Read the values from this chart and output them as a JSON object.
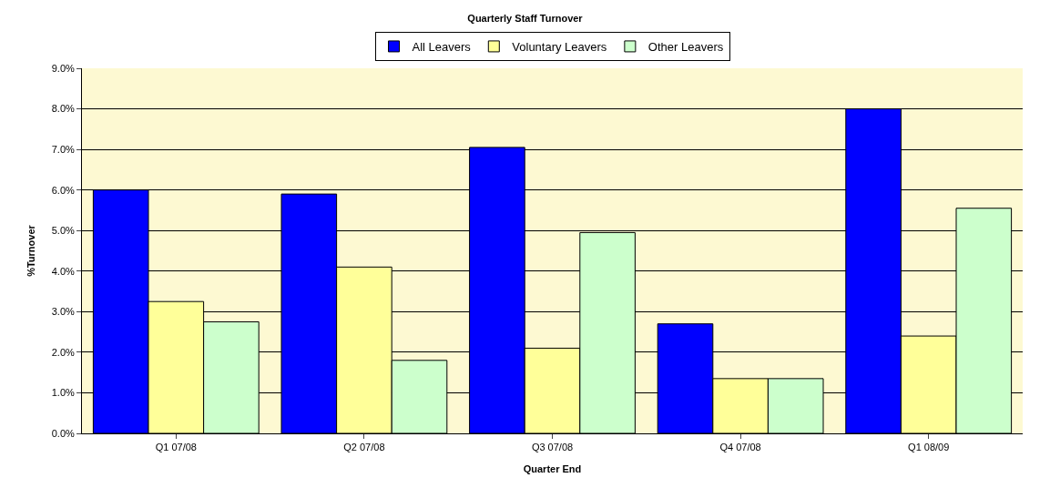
{
  "chart_data": {
    "type": "bar",
    "title": "Quarterly Staff Turnover",
    "xlabel": "Quarter End",
    "ylabel": "%Turnover",
    "categories": [
      "Q1 07/08",
      "Q2 07/08",
      "Q3 07/08",
      "Q4 07/08",
      "Q1 08/09"
    ],
    "series": [
      {
        "name": "All Leavers",
        "color": "#0000ff",
        "values": [
          6.0,
          5.9,
          7.05,
          2.7,
          8.0
        ]
      },
      {
        "name": "Voluntary Leavers",
        "color": "#ffff99",
        "values": [
          3.25,
          4.1,
          2.1,
          1.35,
          2.4
        ]
      },
      {
        "name": "Other Leavers",
        "color": "#ccffcc",
        "values": [
          2.75,
          1.8,
          4.95,
          1.35,
          5.55
        ]
      }
    ],
    "ylim": [
      0,
      9
    ],
    "yticks": [
      {
        "value": 0,
        "label": "0.0%"
      },
      {
        "value": 1,
        "label": "1.0%"
      },
      {
        "value": 2,
        "label": "2.0%"
      },
      {
        "value": 3,
        "label": "3.0%"
      },
      {
        "value": 4,
        "label": "4.0%"
      },
      {
        "value": 5,
        "label": "5.0%"
      },
      {
        "value": 6,
        "label": "6.0%"
      },
      {
        "value": 7,
        "label": "7.0%"
      },
      {
        "value": 8,
        "label": "8.0%"
      },
      {
        "value": 9,
        "label": "9.0%"
      }
    ],
    "grid": "y",
    "legend": "top"
  }
}
